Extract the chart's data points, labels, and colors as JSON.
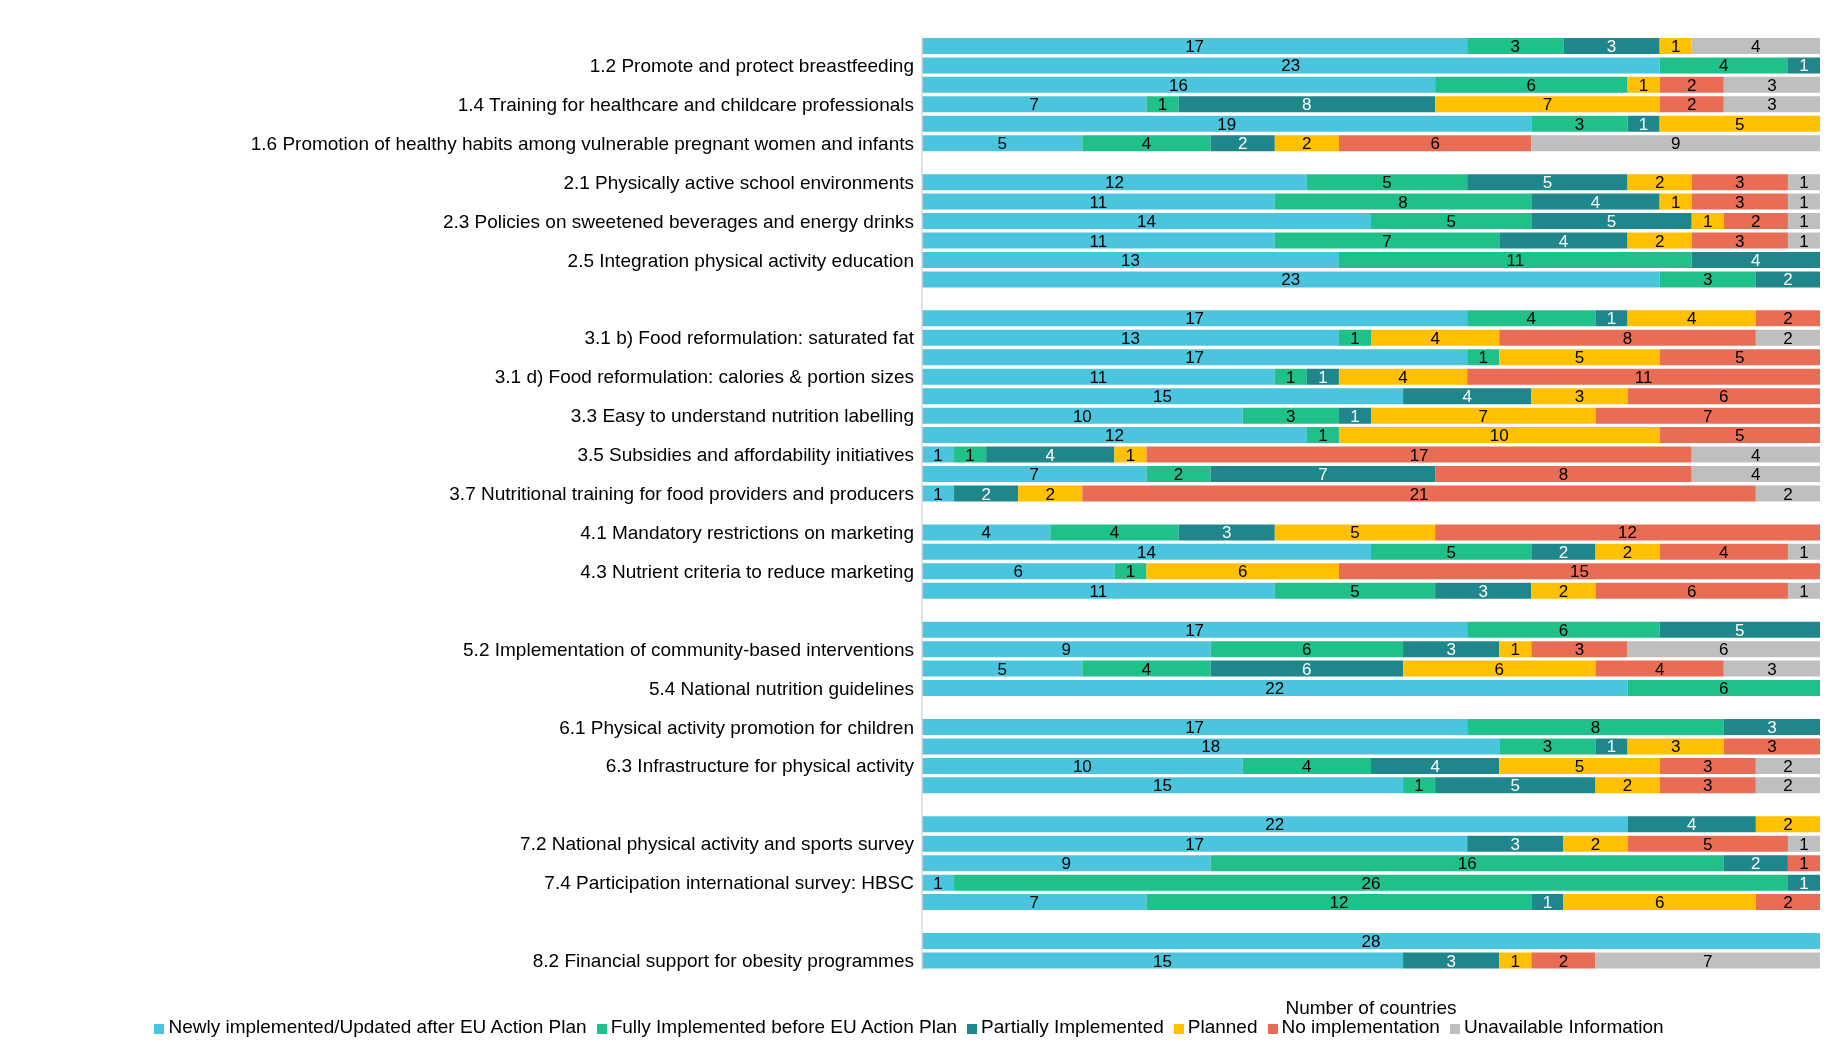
{
  "chart_data": {
    "type": "bar",
    "orientation": "horizontal",
    "stacked": true,
    "xlabel": "Number of countries",
    "xlim": [
      0,
      28
    ],
    "tick_labels": "y",
    "data_labels": true,
    "legend": "bottom",
    "categories": [
      null,
      "1.2 Promote and protect breastfeeding",
      null,
      "1.4 Training for healthcare and childcare professionals",
      null,
      "1.6 Promotion of healthy habits among vulnerable pregnant women and infants",
      null,
      "2.1 Physically active school environments",
      null,
      "2.3 Policies on sweetened beverages and energy drinks",
      null,
      "2.5 Integration physical activity education",
      null,
      null,
      null,
      "3.1 b) Food reformulation: saturated fat",
      null,
      "3.1 d) Food reformulation: calories & portion sizes",
      null,
      "3.3 Easy to understand nutrition labelling ",
      null,
      "3.5 Subsidies and affordability initiatives",
      null,
      "3.7 Nutritional training for food providers and producers",
      null,
      "4.1 Mandatory restrictions on marketing",
      null,
      "4.3 Nutrient criteria to reduce marketing",
      null,
      null,
      null,
      "5.2 Implementation of community-based interventions",
      null,
      "5.4 National nutrition guidelines",
      null,
      "6.1 Physical activity promotion for children",
      null,
      "6.3 Infrastructure for physical activity",
      null,
      null,
      null,
      "7.2 National physical activity and sports survey",
      null,
      "7.4 Participation international survey: HBSC",
      null,
      null,
      null,
      "8.2 Financial support for obesity programmes"
    ],
    "series": [
      {
        "name": "Newly implemented/Updated after EU Action Plan",
        "color": "#4bc4de",
        "values": [
          17,
          23,
          16,
          7,
          19,
          5,
          null,
          12,
          11,
          14,
          11,
          13,
          23,
          null,
          17,
          13,
          17,
          11,
          15,
          10,
          12,
          1,
          7,
          1,
          null,
          4,
          14,
          6,
          11,
          null,
          17,
          9,
          5,
          22,
          null,
          17,
          18,
          10,
          15,
          null,
          22,
          17,
          9,
          1,
          7,
          null,
          28,
          15
        ]
      },
      {
        "name": "Fully Implemented before EU Action Plan",
        "color": "#20c08a",
        "values": [
          3,
          4,
          6,
          1,
          3,
          4,
          null,
          5,
          8,
          5,
          7,
          11,
          3,
          null,
          4,
          1,
          1,
          1,
          null,
          3,
          1,
          1,
          2,
          null,
          null,
          4,
          5,
          1,
          5,
          null,
          6,
          6,
          4,
          6,
          null,
          8,
          3,
          4,
          1,
          null,
          null,
          null,
          16,
          26,
          12,
          null,
          null,
          null
        ]
      },
      {
        "name": "Partially Implemented",
        "color": "#1f868b",
        "values": [
          3,
          1,
          null,
          8,
          1,
          2,
          null,
          5,
          4,
          5,
          4,
          4,
          2,
          null,
          1,
          null,
          null,
          1,
          4,
          1,
          null,
          4,
          7,
          2,
          null,
          3,
          2,
          null,
          3,
          null,
          5,
          3,
          6,
          null,
          null,
          3,
          1,
          4,
          5,
          null,
          4,
          3,
          2,
          1,
          1,
          null,
          null,
          3
        ]
      },
      {
        "name": "Planned",
        "color": "#ffc000",
        "values": [
          1,
          null,
          1,
          7,
          5,
          2,
          null,
          2,
          1,
          1,
          2,
          null,
          null,
          null,
          4,
          4,
          5,
          4,
          3,
          7,
          10,
          1,
          null,
          2,
          null,
          5,
          2,
          6,
          2,
          null,
          null,
          1,
          6,
          null,
          null,
          null,
          3,
          5,
          2,
          null,
          2,
          2,
          null,
          null,
          6,
          null,
          null,
          1
        ]
      },
      {
        "name": "No implementation",
        "color": "#e96c55",
        "values": [
          null,
          null,
          2,
          2,
          null,
          6,
          null,
          3,
          3,
          2,
          3,
          null,
          null,
          null,
          2,
          8,
          5,
          11,
          6,
          7,
          5,
          17,
          8,
          21,
          null,
          12,
          4,
          15,
          6,
          null,
          null,
          3,
          4,
          null,
          null,
          null,
          3,
          3,
          3,
          null,
          null,
          5,
          1,
          null,
          2,
          null,
          null,
          2
        ]
      },
      {
        "name": "Unavailable Information",
        "color": "#bfbfbf",
        "values": [
          4,
          null,
          3,
          3,
          null,
          9,
          null,
          1,
          1,
          1,
          1,
          null,
          null,
          null,
          null,
          2,
          null,
          null,
          null,
          null,
          null,
          4,
          4,
          2,
          null,
          null,
          1,
          null,
          1,
          null,
          null,
          6,
          3,
          null,
          null,
          null,
          null,
          2,
          2,
          null,
          null,
          1,
          null,
          null,
          null,
          null,
          null,
          7
        ]
      }
    ]
  }
}
